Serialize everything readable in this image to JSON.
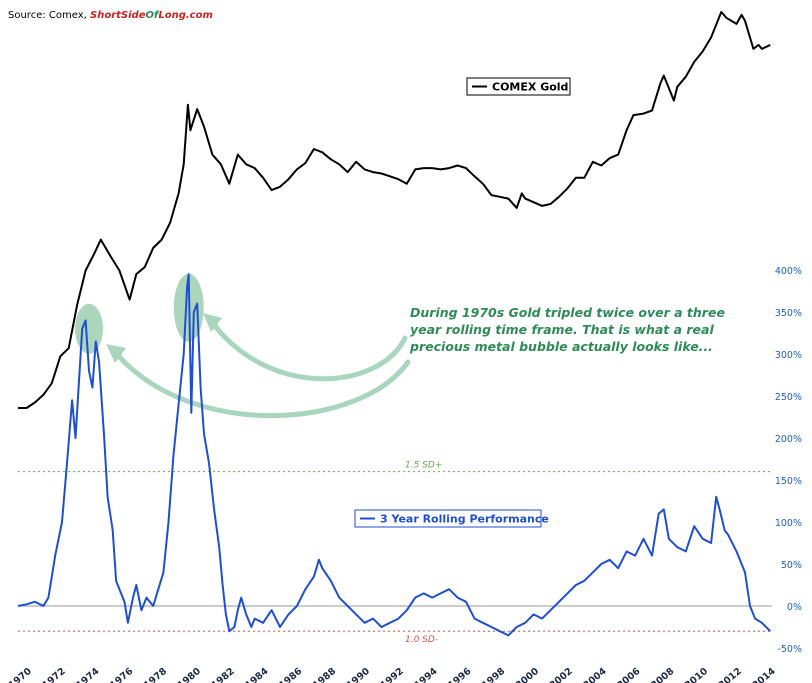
{
  "source": {
    "prefix": "Source: Comex, ",
    "brand_parts": [
      "Short",
      "Side",
      "Of",
      "Long",
      ".com"
    ],
    "brand_colors": [
      "#cc2222",
      "#cc2222",
      "#2e8b57",
      "#cc2222",
      "#cc2222"
    ]
  },
  "colors": {
    "gold_line": "#000000",
    "perf_line": "#1f4fd0",
    "sd_plus": "#6aa84f",
    "sd_minus": "#d9534f",
    "highlight": "#9dcfb0",
    "arrow": "#a9d5bf",
    "annotation": "#2e8b57",
    "axis_text": "#1f5fbf"
  },
  "annotation": {
    "lines": [
      "During 1970s Gold tripled twice over a three",
      "year rolling time frame. That is what a real",
      "precious metal bubble actually looks like..."
    ]
  },
  "chart_data": {
    "type": "line",
    "xlim": [
      1970,
      2014.6
    ],
    "x_ticks": [
      "1970",
      "1972",
      "1974",
      "1976",
      "1978",
      "1980",
      "1982",
      "1984",
      "1986",
      "1988",
      "1990",
      "1992",
      "1994",
      "1996",
      "1998",
      "2000",
      "2002",
      "2004",
      "2006",
      "2008",
      "2010",
      "2012",
      "2014"
    ],
    "y_right": {
      "ylim": [
        -50,
        400
      ],
      "ticks": [
        "400%",
        "350%",
        "300%",
        "250%",
        "200%",
        "150%",
        "100%",
        "50%",
        "0%",
        "-50%"
      ],
      "tick_values": [
        400,
        350,
        300,
        250,
        200,
        150,
        100,
        50,
        0,
        -50
      ]
    },
    "reference_lines": [
      {
        "label": "1.5 SD+",
        "value": 160
      },
      {
        "label": "1.0 SD-",
        "value": -30
      },
      {
        "label": "",
        "value": 0
      }
    ],
    "highlights": [
      {
        "year": 1974.2,
        "value": 330
      },
      {
        "year": 1980.1,
        "value": 355
      }
    ],
    "series": [
      {
        "name": "COMEX Gold",
        "axis": "left-log",
        "points": [
          [
            1970.0,
            36
          ],
          [
            1970.5,
            36
          ],
          [
            1971.0,
            38
          ],
          [
            1971.5,
            41
          ],
          [
            1972.0,
            46
          ],
          [
            1972.5,
            60
          ],
          [
            1973.0,
            65
          ],
          [
            1973.5,
            100
          ],
          [
            1974.0,
            140
          ],
          [
            1974.5,
            165
          ],
          [
            1974.9,
            190
          ],
          [
            1975.5,
            160
          ],
          [
            1976.0,
            140
          ],
          [
            1976.6,
            105
          ],
          [
            1977.0,
            135
          ],
          [
            1977.5,
            145
          ],
          [
            1978.0,
            175
          ],
          [
            1978.5,
            190
          ],
          [
            1979.0,
            225
          ],
          [
            1979.5,
            300
          ],
          [
            1979.8,
            400
          ],
          [
            1980.05,
            720
          ],
          [
            1980.2,
            560
          ],
          [
            1980.6,
            690
          ],
          [
            1981.0,
            580
          ],
          [
            1981.5,
            440
          ],
          [
            1982.0,
            400
          ],
          [
            1982.5,
            330
          ],
          [
            1983.0,
            440
          ],
          [
            1983.5,
            400
          ],
          [
            1984.0,
            385
          ],
          [
            1984.5,
            350
          ],
          [
            1985.0,
            310
          ],
          [
            1985.5,
            320
          ],
          [
            1986.0,
            345
          ],
          [
            1986.5,
            380
          ],
          [
            1987.0,
            405
          ],
          [
            1987.5,
            465
          ],
          [
            1988.0,
            450
          ],
          [
            1988.5,
            420
          ],
          [
            1989.0,
            400
          ],
          [
            1989.5,
            370
          ],
          [
            1990.0,
            410
          ],
          [
            1990.5,
            380
          ],
          [
            1991.0,
            370
          ],
          [
            1991.5,
            365
          ],
          [
            1992.0,
            355
          ],
          [
            1992.5,
            345
          ],
          [
            1993.0,
            330
          ],
          [
            1993.5,
            380
          ],
          [
            1994.0,
            385
          ],
          [
            1994.5,
            385
          ],
          [
            1995.0,
            380
          ],
          [
            1995.5,
            385
          ],
          [
            1996.0,
            395
          ],
          [
            1996.5,
            385
          ],
          [
            1997.0,
            355
          ],
          [
            1997.5,
            330
          ],
          [
            1998.0,
            295
          ],
          [
            1998.5,
            290
          ],
          [
            1999.0,
            285
          ],
          [
            1999.5,
            260
          ],
          [
            1999.8,
            300
          ],
          [
            2000.0,
            285
          ],
          [
            2000.5,
            275
          ],
          [
            2001.0,
            265
          ],
          [
            2001.5,
            270
          ],
          [
            2002.0,
            290
          ],
          [
            2002.5,
            315
          ],
          [
            2003.0,
            350
          ],
          [
            2003.5,
            350
          ],
          [
            2004.0,
            410
          ],
          [
            2004.5,
            395
          ],
          [
            2005.0,
            425
          ],
          [
            2005.5,
            440
          ],
          [
            2006.0,
            560
          ],
          [
            2006.4,
            650
          ],
          [
            2007.0,
            660
          ],
          [
            2007.5,
            680
          ],
          [
            2008.0,
            890
          ],
          [
            2008.2,
            960
          ],
          [
            2008.8,
            750
          ],
          [
            2009.0,
            860
          ],
          [
            2009.5,
            950
          ],
          [
            2010.0,
            1100
          ],
          [
            2010.5,
            1220
          ],
          [
            2011.0,
            1400
          ],
          [
            2011.6,
            1800
          ],
          [
            2011.9,
            1700
          ],
          [
            2012.5,
            1600
          ],
          [
            2012.8,
            1750
          ],
          [
            2013.0,
            1650
          ],
          [
            2013.5,
            1250
          ],
          [
            2013.8,
            1300
          ],
          [
            2014.0,
            1250
          ],
          [
            2014.5,
            1300
          ]
        ]
      },
      {
        "name": "3 Year Rolling Performance",
        "axis": "right",
        "points": [
          [
            1970.0,
            0
          ],
          [
            1970.5,
            2
          ],
          [
            1971.0,
            5
          ],
          [
            1971.5,
            0
          ],
          [
            1971.8,
            10
          ],
          [
            1972.2,
            60
          ],
          [
            1972.6,
            100
          ],
          [
            1972.9,
            170
          ],
          [
            1973.2,
            245
          ],
          [
            1973.4,
            200
          ],
          [
            1973.8,
            330
          ],
          [
            1974.0,
            340
          ],
          [
            1974.2,
            280
          ],
          [
            1974.4,
            260
          ],
          [
            1974.6,
            315
          ],
          [
            1974.8,
            290
          ],
          [
            1975.1,
            200
          ],
          [
            1975.3,
            130
          ],
          [
            1975.6,
            90
          ],
          [
            1975.8,
            30
          ],
          [
            1976.0,
            20
          ],
          [
            1976.3,
            5
          ],
          [
            1976.5,
            -20
          ],
          [
            1976.8,
            10
          ],
          [
            1977.0,
            25
          ],
          [
            1977.3,
            -5
          ],
          [
            1977.6,
            10
          ],
          [
            1978.0,
            0
          ],
          [
            1978.3,
            20
          ],
          [
            1978.6,
            40
          ],
          [
            1978.9,
            100
          ],
          [
            1979.2,
            180
          ],
          [
            1979.5,
            240
          ],
          [
            1979.8,
            300
          ],
          [
            1980.0,
            380
          ],
          [
            1980.1,
            395
          ],
          [
            1980.25,
            230
          ],
          [
            1980.4,
            350
          ],
          [
            1980.6,
            360
          ],
          [
            1980.8,
            260
          ],
          [
            1981.0,
            205
          ],
          [
            1981.3,
            170
          ],
          [
            1981.6,
            115
          ],
          [
            1981.9,
            70
          ],
          [
            1982.1,
            25
          ],
          [
            1982.3,
            -10
          ],
          [
            1982.5,
            -30
          ],
          [
            1982.8,
            -25
          ],
          [
            1983.0,
            -5
          ],
          [
            1983.2,
            10
          ],
          [
            1983.5,
            -10
          ],
          [
            1983.8,
            -25
          ],
          [
            1984.0,
            -15
          ],
          [
            1984.5,
            -20
          ],
          [
            1985.0,
            -5
          ],
          [
            1985.5,
            -25
          ],
          [
            1986.0,
            -10
          ],
          [
            1986.5,
            0
          ],
          [
            1987.0,
            20
          ],
          [
            1987.5,
            35
          ],
          [
            1987.8,
            55
          ],
          [
            1988.0,
            45
          ],
          [
            1988.5,
            30
          ],
          [
            1989.0,
            10
          ],
          [
            1989.5,
            0
          ],
          [
            1990.0,
            -10
          ],
          [
            1990.5,
            -20
          ],
          [
            1991.0,
            -15
          ],
          [
            1991.5,
            -25
          ],
          [
            1992.0,
            -20
          ],
          [
            1992.5,
            -15
          ],
          [
            1993.0,
            -5
          ],
          [
            1993.5,
            10
          ],
          [
            1994.0,
            15
          ],
          [
            1994.5,
            10
          ],
          [
            1995.0,
            15
          ],
          [
            1995.5,
            20
          ],
          [
            1996.0,
            10
          ],
          [
            1996.5,
            5
          ],
          [
            1997.0,
            -15
          ],
          [
            1997.5,
            -20
          ],
          [
            1998.0,
            -25
          ],
          [
            1998.5,
            -30
          ],
          [
            1999.0,
            -35
          ],
          [
            1999.5,
            -25
          ],
          [
            2000.0,
            -20
          ],
          [
            2000.5,
            -10
          ],
          [
            2001.0,
            -15
          ],
          [
            2001.5,
            -5
          ],
          [
            2002.0,
            5
          ],
          [
            2002.5,
            15
          ],
          [
            2003.0,
            25
          ],
          [
            2003.5,
            30
          ],
          [
            2004.0,
            40
          ],
          [
            2004.5,
            50
          ],
          [
            2005.0,
            55
          ],
          [
            2005.5,
            45
          ],
          [
            2006.0,
            65
          ],
          [
            2006.5,
            60
          ],
          [
            2007.0,
            80
          ],
          [
            2007.5,
            60
          ],
          [
            2007.9,
            110
          ],
          [
            2008.2,
            115
          ],
          [
            2008.5,
            80
          ],
          [
            2009.0,
            70
          ],
          [
            2009.5,
            65
          ],
          [
            2010.0,
            95
          ],
          [
            2010.5,
            80
          ],
          [
            2011.0,
            75
          ],
          [
            2011.3,
            130
          ],
          [
            2011.5,
            115
          ],
          [
            2011.8,
            90
          ],
          [
            2012.0,
            85
          ],
          [
            2012.5,
            65
          ],
          [
            2013.0,
            40
          ],
          [
            2013.3,
            0
          ],
          [
            2013.6,
            -15
          ],
          [
            2014.0,
            -20
          ],
          [
            2014.5,
            -30
          ]
        ]
      }
    ]
  }
}
